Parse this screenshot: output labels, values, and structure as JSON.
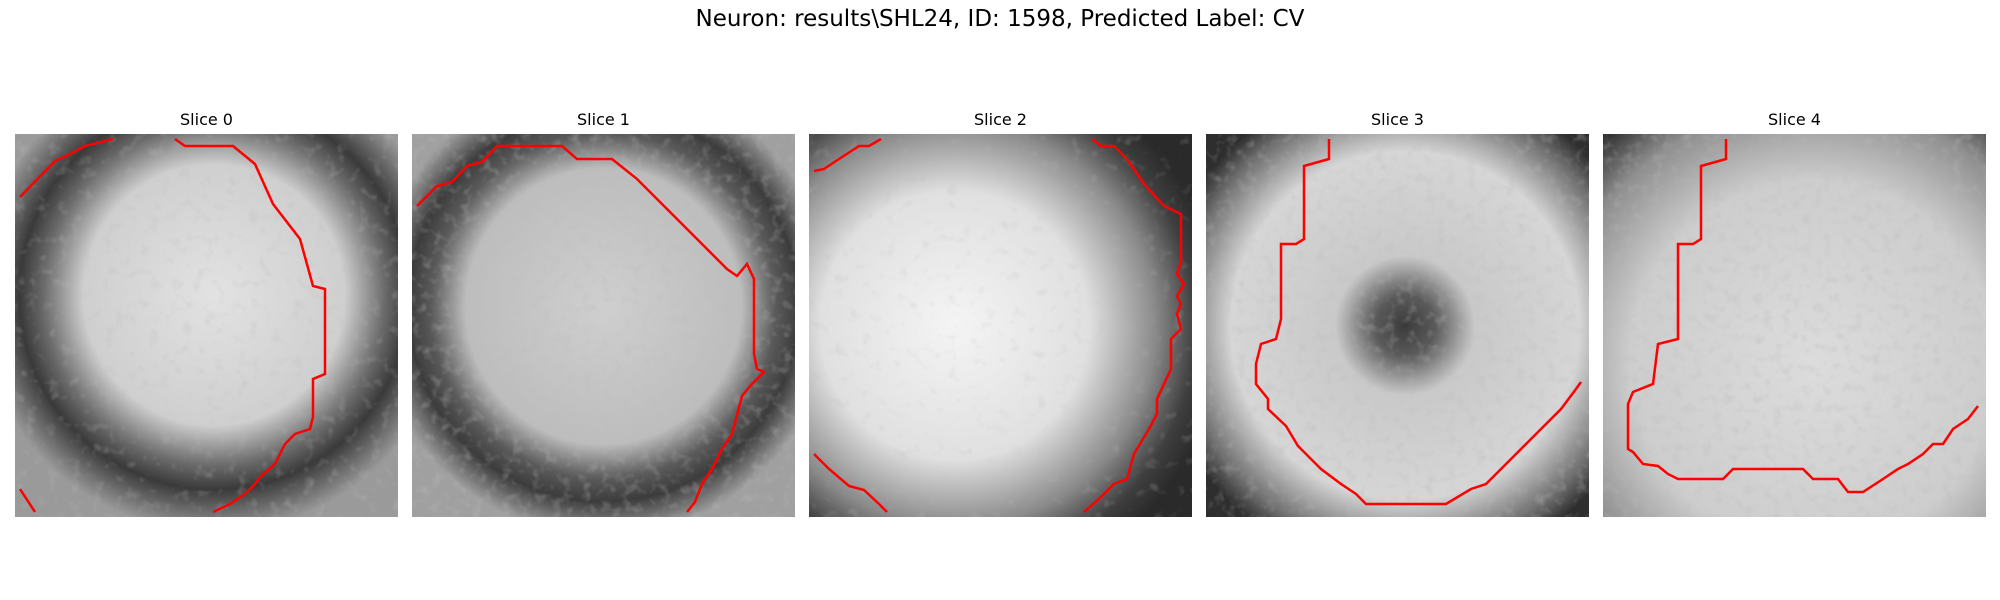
{
  "figure": {
    "title": "Neuron: results\\SHL24, ID: 1598, Predicted Label: CV"
  },
  "panels": [
    {
      "title": "Slice 0",
      "contour_color": "#ff0000"
    },
    {
      "title": "Slice 1",
      "contour_color": "#ff0000"
    },
    {
      "title": "Slice 2",
      "contour_color": "#ff0000"
    },
    {
      "title": "Slice 3",
      "contour_color": "#ff0000"
    },
    {
      "title": "Slice 4",
      "contour_color": "#ff0000"
    }
  ],
  "style": {
    "background": "#ffffff",
    "colormap": "gray"
  }
}
